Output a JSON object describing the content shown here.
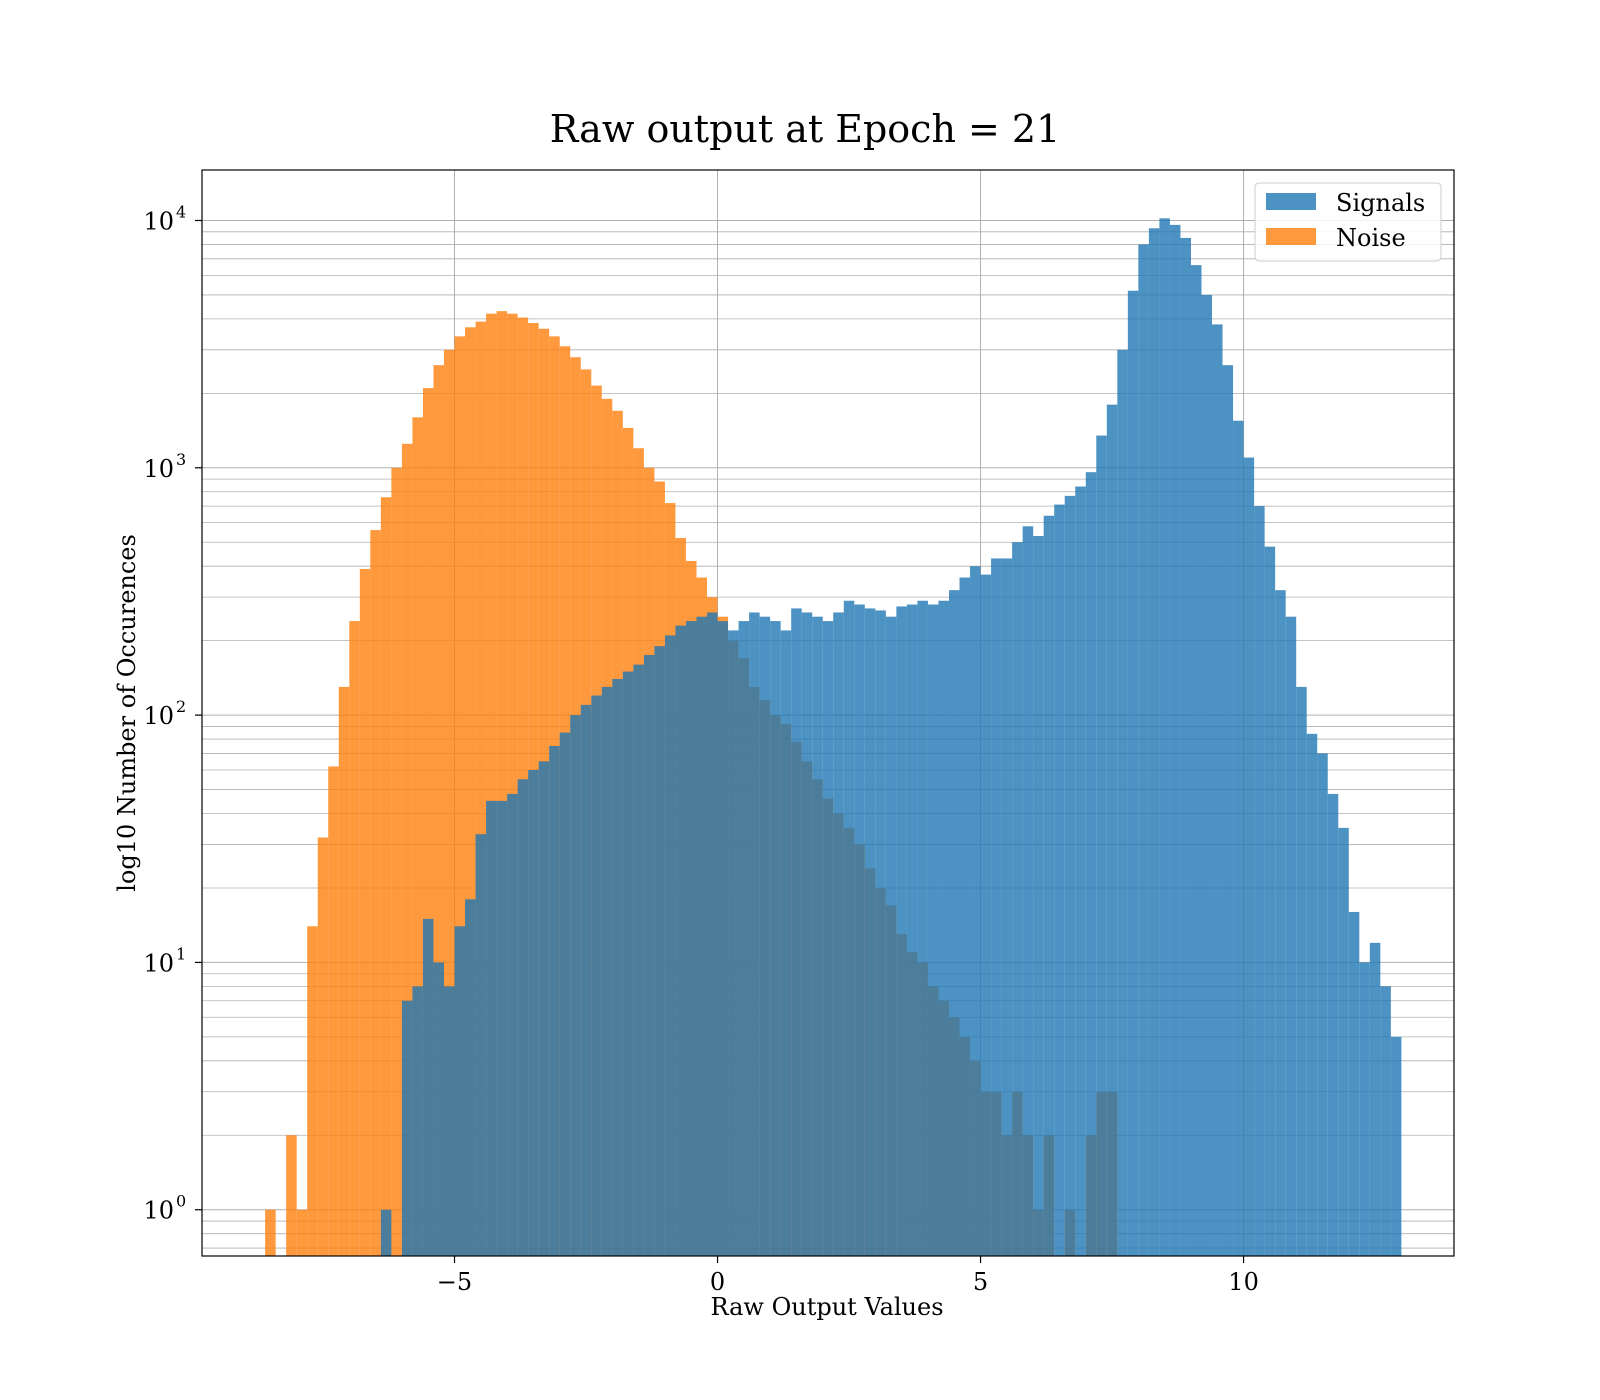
{
  "chart_data": {
    "type": "bar",
    "subtype": "histogram",
    "title": "Raw output at Epoch = 21",
    "xlabel": "Raw Output Values",
    "ylabel": "log10 Number of Occurences",
    "xlim": [
      -9.8,
      14.0
    ],
    "ylim": [
      0.65,
      16000
    ],
    "yscale": "log",
    "grid": true,
    "legend_position": "top-right",
    "x_ticks": [
      {
        "value": -5,
        "label": "−5"
      },
      {
        "value": 0,
        "label": "0"
      },
      {
        "value": 5,
        "label": "5"
      },
      {
        "value": 10,
        "label": "10"
      }
    ],
    "y_ticks": [
      {
        "value": 1,
        "base": "10",
        "exp": "0"
      },
      {
        "value": 10,
        "base": "10",
        "exp": "1"
      },
      {
        "value": 100,
        "base": "10",
        "exp": "2"
      },
      {
        "value": 1000,
        "base": "10",
        "exp": "3"
      },
      {
        "value": 10000,
        "base": "10",
        "exp": "4"
      }
    ],
    "series": [
      {
        "name": "Signals",
        "color": "#1f77b4",
        "opacity": 0.8,
        "bins": [
          [
            -6.4,
            -6.2,
            1
          ],
          [
            -6.0,
            -5.8,
            7
          ],
          [
            -5.8,
            -5.6,
            8
          ],
          [
            -5.6,
            -5.4,
            15
          ],
          [
            -5.4,
            -5.2,
            10
          ],
          [
            -5.2,
            -5.0,
            8
          ],
          [
            -5.0,
            -4.8,
            14
          ],
          [
            -4.8,
            -4.6,
            18
          ],
          [
            -4.6,
            -4.4,
            33
          ],
          [
            -4.4,
            -4.2,
            45
          ],
          [
            -4.2,
            -4.0,
            45
          ],
          [
            -4.0,
            -3.8,
            48
          ],
          [
            -3.8,
            -3.6,
            55
          ],
          [
            -3.6,
            -3.4,
            60
          ],
          [
            -3.4,
            -3.2,
            65
          ],
          [
            -3.2,
            -3.0,
            75
          ],
          [
            -3.0,
            -2.8,
            85
          ],
          [
            -2.8,
            -2.6,
            100
          ],
          [
            -2.6,
            -2.4,
            110
          ],
          [
            -2.4,
            -2.2,
            120
          ],
          [
            -2.2,
            -2.0,
            130
          ],
          [
            -2.0,
            -1.8,
            140
          ],
          [
            -1.8,
            -1.6,
            150
          ],
          [
            -1.6,
            -1.4,
            160
          ],
          [
            -1.4,
            -1.2,
            175
          ],
          [
            -1.2,
            -1.0,
            190
          ],
          [
            -1.0,
            -0.8,
            210
          ],
          [
            -0.8,
            -0.6,
            230
          ],
          [
            -0.6,
            -0.4,
            240
          ],
          [
            -0.4,
            -0.2,
            250
          ],
          [
            -0.2,
            0.0,
            260
          ],
          [
            0.0,
            0.2,
            240
          ],
          [
            0.2,
            0.4,
            220
          ],
          [
            0.4,
            0.6,
            240
          ],
          [
            0.6,
            0.8,
            260
          ],
          [
            0.8,
            1.0,
            250
          ],
          [
            1.0,
            1.2,
            240
          ],
          [
            1.2,
            1.4,
            220
          ],
          [
            1.4,
            1.6,
            270
          ],
          [
            1.6,
            1.8,
            260
          ],
          [
            1.8,
            2.0,
            250
          ],
          [
            2.0,
            2.2,
            240
          ],
          [
            2.2,
            2.4,
            260
          ],
          [
            2.4,
            2.6,
            290
          ],
          [
            2.6,
            2.8,
            280
          ],
          [
            2.8,
            3.0,
            270
          ],
          [
            3.0,
            3.2,
            265
          ],
          [
            3.2,
            3.4,
            250
          ],
          [
            3.4,
            3.6,
            275
          ],
          [
            3.6,
            3.8,
            280
          ],
          [
            3.8,
            4.0,
            290
          ],
          [
            4.0,
            4.2,
            280
          ],
          [
            4.2,
            4.4,
            290
          ],
          [
            4.4,
            4.6,
            320
          ],
          [
            4.6,
            4.8,
            360
          ],
          [
            4.8,
            5.0,
            400
          ],
          [
            5.0,
            5.2,
            370
          ],
          [
            5.2,
            5.4,
            430
          ],
          [
            5.4,
            5.6,
            430
          ],
          [
            5.6,
            5.8,
            500
          ],
          [
            5.8,
            6.0,
            580
          ],
          [
            6.0,
            6.2,
            530
          ],
          [
            6.2,
            6.4,
            640
          ],
          [
            6.4,
            6.6,
            710
          ],
          [
            6.6,
            6.8,
            770
          ],
          [
            6.8,
            7.0,
            840
          ],
          [
            7.0,
            7.2,
            960
          ],
          [
            7.2,
            7.4,
            1350
          ],
          [
            7.4,
            7.6,
            1800
          ],
          [
            7.6,
            7.8,
            3000
          ],
          [
            7.8,
            8.0,
            5200
          ],
          [
            8.0,
            8.2,
            8000
          ],
          [
            8.2,
            8.4,
            9300
          ],
          [
            8.4,
            8.6,
            10200
          ],
          [
            8.6,
            8.8,
            9600
          ],
          [
            8.8,
            9.0,
            8500
          ],
          [
            9.0,
            9.2,
            6600
          ],
          [
            9.2,
            9.4,
            5000
          ],
          [
            9.4,
            9.6,
            3800
          ],
          [
            9.6,
            9.8,
            2600
          ],
          [
            9.8,
            10.0,
            1550
          ],
          [
            10.0,
            10.2,
            1100
          ],
          [
            10.2,
            10.4,
            700
          ],
          [
            10.4,
            10.6,
            480
          ],
          [
            10.6,
            10.8,
            320
          ],
          [
            10.8,
            11.0,
            250
          ],
          [
            11.0,
            11.2,
            130
          ],
          [
            11.2,
            11.4,
            84
          ],
          [
            11.4,
            11.6,
            70
          ],
          [
            11.6,
            11.8,
            48
          ],
          [
            11.8,
            12.0,
            35
          ],
          [
            12.0,
            12.2,
            16
          ],
          [
            12.2,
            12.4,
            10
          ],
          [
            12.4,
            12.6,
            12
          ],
          [
            12.6,
            12.8,
            8
          ],
          [
            12.8,
            13.0,
            5
          ]
        ]
      },
      {
        "name": "Noise",
        "color": "#ff7f0e",
        "opacity": 0.8,
        "bins": [
          [
            -8.6,
            -8.4,
            1
          ],
          [
            -8.2,
            -8.0,
            2
          ],
          [
            -8.0,
            -7.8,
            1
          ],
          [
            -7.8,
            -7.6,
            14
          ],
          [
            -7.6,
            -7.4,
            32
          ],
          [
            -7.4,
            -7.2,
            62
          ],
          [
            -7.2,
            -7.0,
            130
          ],
          [
            -7.0,
            -6.8,
            240
          ],
          [
            -6.8,
            -6.6,
            390
          ],
          [
            -6.6,
            -6.4,
            560
          ],
          [
            -6.4,
            -6.2,
            760
          ],
          [
            -6.2,
            -6.0,
            1000
          ],
          [
            -6.0,
            -5.8,
            1250
          ],
          [
            -5.8,
            -5.6,
            1600
          ],
          [
            -5.6,
            -5.4,
            2100
          ],
          [
            -5.4,
            -5.2,
            2600
          ],
          [
            -5.2,
            -5.0,
            3000
          ],
          [
            -5.0,
            -4.8,
            3400
          ],
          [
            -4.8,
            -4.6,
            3700
          ],
          [
            -4.6,
            -4.4,
            3900
          ],
          [
            -4.4,
            -4.2,
            4200
          ],
          [
            -4.2,
            -4.0,
            4300
          ],
          [
            -4.0,
            -3.8,
            4200
          ],
          [
            -3.8,
            -3.6,
            4050
          ],
          [
            -3.6,
            -3.4,
            3850
          ],
          [
            -3.4,
            -3.2,
            3650
          ],
          [
            -3.2,
            -3.0,
            3400
          ],
          [
            -3.0,
            -2.8,
            3100
          ],
          [
            -2.8,
            -2.6,
            2800
          ],
          [
            -2.6,
            -2.4,
            2500
          ],
          [
            -2.4,
            -2.2,
            2150
          ],
          [
            -2.2,
            -2.0,
            1900
          ],
          [
            -2.0,
            -1.8,
            1700
          ],
          [
            -1.8,
            -1.6,
            1450
          ],
          [
            -1.6,
            -1.4,
            1200
          ],
          [
            -1.4,
            -1.2,
            1000
          ],
          [
            -1.2,
            -1.0,
            880
          ],
          [
            -1.0,
            -0.8,
            720
          ],
          [
            -0.8,
            -0.6,
            520
          ],
          [
            -0.6,
            -0.4,
            420
          ],
          [
            -0.4,
            -0.2,
            360
          ],
          [
            -0.2,
            0.0,
            300
          ],
          [
            0.0,
            0.2,
            250
          ],
          [
            0.2,
            0.4,
            200
          ],
          [
            0.4,
            0.6,
            170
          ],
          [
            0.6,
            0.8,
            130
          ],
          [
            0.8,
            1.0,
            115
          ],
          [
            1.0,
            1.2,
            100
          ],
          [
            1.2,
            1.4,
            92
          ],
          [
            1.4,
            1.6,
            78
          ],
          [
            1.6,
            1.8,
            65
          ],
          [
            1.8,
            2.0,
            55
          ],
          [
            2.0,
            2.2,
            46
          ],
          [
            2.2,
            2.4,
            40
          ],
          [
            2.4,
            2.6,
            35
          ],
          [
            2.6,
            2.8,
            30
          ],
          [
            2.8,
            3.0,
            24
          ],
          [
            3.0,
            3.2,
            20
          ],
          [
            3.2,
            3.4,
            17
          ],
          [
            3.4,
            3.6,
            13
          ],
          [
            3.6,
            3.8,
            11
          ],
          [
            3.8,
            4.0,
            10
          ],
          [
            4.0,
            4.2,
            8
          ],
          [
            4.2,
            4.4,
            7
          ],
          [
            4.4,
            4.6,
            6
          ],
          [
            4.6,
            4.8,
            5
          ],
          [
            4.8,
            5.0,
            4
          ],
          [
            5.0,
            5.2,
            3
          ],
          [
            5.2,
            5.4,
            3
          ],
          [
            5.4,
            5.6,
            2
          ],
          [
            5.6,
            5.8,
            3
          ],
          [
            5.8,
            6.0,
            2
          ],
          [
            6.0,
            6.2,
            1
          ],
          [
            6.2,
            6.4,
            2
          ],
          [
            6.6,
            6.8,
            1
          ],
          [
            7.0,
            7.2,
            2
          ],
          [
            7.2,
            7.4,
            3
          ],
          [
            7.4,
            7.6,
            3
          ]
        ]
      }
    ]
  }
}
